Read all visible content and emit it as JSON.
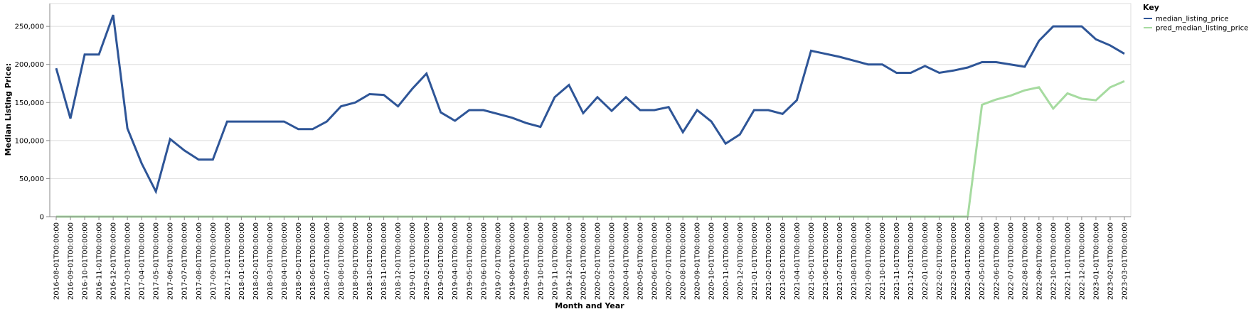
{
  "chart_data": {
    "type": "line",
    "xlabel": "Month and Year",
    "ylabel": "Median Listing Price:",
    "ylim": [
      0,
      280000
    ],
    "yticks": [
      0,
      50000,
      100000,
      150000,
      200000,
      250000
    ],
    "grid": true,
    "legend": {
      "title": "Key",
      "placement": "top-right"
    },
    "x": [
      "2016-08-01T00:00:00",
      "2016-09-01T00:00:00",
      "2016-10-01T00:00:00",
      "2016-11-01T00:00:00",
      "2016-12-01T00:00:00",
      "2017-03-01T00:00:00",
      "2017-04-01T00:00:00",
      "2017-05-01T00:00:00",
      "2017-06-01T00:00:00",
      "2017-07-01T00:00:00",
      "2017-08-01T00:00:00",
      "2017-09-01T00:00:00",
      "2017-12-01T00:00:00",
      "2018-01-01T00:00:00",
      "2018-02-01T00:00:00",
      "2018-03-01T00:00:00",
      "2018-04-01T00:00:00",
      "2018-05-01T00:00:00",
      "2018-06-01T00:00:00",
      "2018-07-01T00:00:00",
      "2018-08-01T00:00:00",
      "2018-09-01T00:00:00",
      "2018-10-01T00:00:00",
      "2018-11-01T00:00:00",
      "2018-12-01T00:00:00",
      "2019-01-01T00:00:00",
      "2019-02-01T00:00:00",
      "2019-03-01T00:00:00",
      "2019-04-01T00:00:00",
      "2019-05-01T00:00:00",
      "2019-06-01T00:00:00",
      "2019-07-01T00:00:00",
      "2019-08-01T00:00:00",
      "2019-09-01T00:00:00",
      "2019-10-01T00:00:00",
      "2019-11-01T00:00:00",
      "2019-12-01T00:00:00",
      "2020-01-01T00:00:00",
      "2020-02-01T00:00:00",
      "2020-03-01T00:00:00",
      "2020-04-01T00:00:00",
      "2020-05-01T00:00:00",
      "2020-06-01T00:00:00",
      "2020-07-01T00:00:00",
      "2020-08-01T00:00:00",
      "2020-09-01T00:00:00",
      "2020-10-01T00:00:00",
      "2020-11-01T00:00:00",
      "2020-12-01T00:00:00",
      "2021-01-01T00:00:00",
      "2021-02-01T00:00:00",
      "2021-03-01T00:00:00",
      "2021-04-01T00:00:00",
      "2021-05-01T00:00:00",
      "2021-06-01T00:00:00",
      "2021-07-01T00:00:00",
      "2021-08-01T00:00:00",
      "2021-09-01T00:00:00",
      "2021-10-01T00:00:00",
      "2021-11-01T00:00:00",
      "2021-12-01T00:00:00",
      "2022-01-01T00:00:00",
      "2022-02-01T00:00:00",
      "2022-03-01T00:00:00",
      "2022-04-01T00:00:00",
      "2022-05-01T00:00:00",
      "2022-06-01T00:00:00",
      "2022-07-01T00:00:00",
      "2022-08-01T00:00:00",
      "2022-09-01T00:00:00",
      "2022-10-01T00:00:00",
      "2022-11-01T00:00:00",
      "2022-12-01T00:00:00",
      "2023-01-01T00:00:00",
      "2023-02-01T00:00:00",
      "2023-03-01T00:00:00"
    ],
    "series": [
      {
        "name": "median_listing_price",
        "color": "#2e5597",
        "values": [
          195000,
          129000,
          213000,
          213000,
          265000,
          116000,
          70000,
          33000,
          102000,
          87000,
          75000,
          75000,
          125000,
          125000,
          125000,
          125000,
          125000,
          115000,
          115000,
          125000,
          145000,
          150000,
          161000,
          160000,
          145000,
          168000,
          188000,
          137000,
          126000,
          140000,
          140000,
          135000,
          130000,
          123000,
          118000,
          157000,
          173000,
          136000,
          157000,
          139000,
          157000,
          140000,
          140000,
          144000,
          111000,
          140000,
          125000,
          96000,
          108000,
          140000,
          140000,
          135000,
          153000,
          218000,
          214000,
          210000,
          205000,
          200000,
          200000,
          189000,
          189000,
          198000,
          189000,
          192000,
          196000,
          203000,
          203000,
          200000,
          197000,
          231000,
          250000,
          250000,
          250000,
          233000,
          225000,
          214000
        ]
      },
      {
        "name": "pred_median_listing_price",
        "color": "#a6dba0",
        "values": [
          0,
          0,
          0,
          0,
          0,
          0,
          0,
          0,
          0,
          0,
          0,
          0,
          0,
          0,
          0,
          0,
          0,
          0,
          0,
          0,
          0,
          0,
          0,
          0,
          0,
          0,
          0,
          0,
          0,
          0,
          0,
          0,
          0,
          0,
          0,
          0,
          0,
          0,
          0,
          0,
          0,
          0,
          0,
          0,
          0,
          0,
          0,
          0,
          0,
          0,
          0,
          0,
          0,
          0,
          0,
          0,
          0,
          0,
          0,
          0,
          0,
          0,
          0,
          0,
          0,
          147000,
          154000,
          159000,
          166000,
          170000,
          142000,
          162000,
          155000,
          153000,
          170000,
          178000
        ]
      }
    ]
  }
}
